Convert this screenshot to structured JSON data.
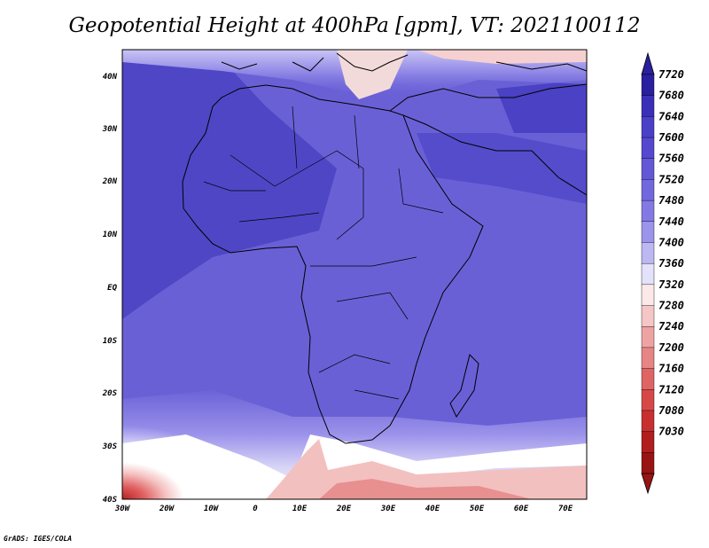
{
  "title": "Geopotential Height at 400hPa [gpm], VT: 2021100112",
  "footer": "GrADS: IGES/COLA",
  "map": {
    "region": "Africa",
    "lat_labels": [
      "40N",
      "30N",
      "20N",
      "10N",
      "EQ",
      "10S",
      "20S",
      "30S",
      "40S"
    ],
    "lon_labels": [
      "30W",
      "20W",
      "10W",
      "0",
      "10E",
      "20E",
      "30E",
      "40E",
      "50E",
      "60E",
      "70E"
    ]
  },
  "colorbar": {
    "levels": [
      "7720",
      "7680",
      "7640",
      "7600",
      "7560",
      "7520",
      "7480",
      "7440",
      "7400",
      "7360",
      "7320",
      "7280",
      "7240",
      "7200",
      "7160",
      "7120",
      "7080",
      "7030"
    ],
    "colors": [
      "#2a1f9e",
      "#3a30b8",
      "#4a40c8",
      "#5548cf",
      "#6258d6",
      "#7268dd",
      "#8479e4",
      "#9c93eb",
      "#bdb8f2",
      "#e4e2fa",
      "#fbe8e8",
      "#f5c6c6",
      "#eea3a3",
      "#e78484",
      "#df6565",
      "#d64848",
      "#c83030",
      "#b01e1e",
      "#981414"
    ]
  }
}
